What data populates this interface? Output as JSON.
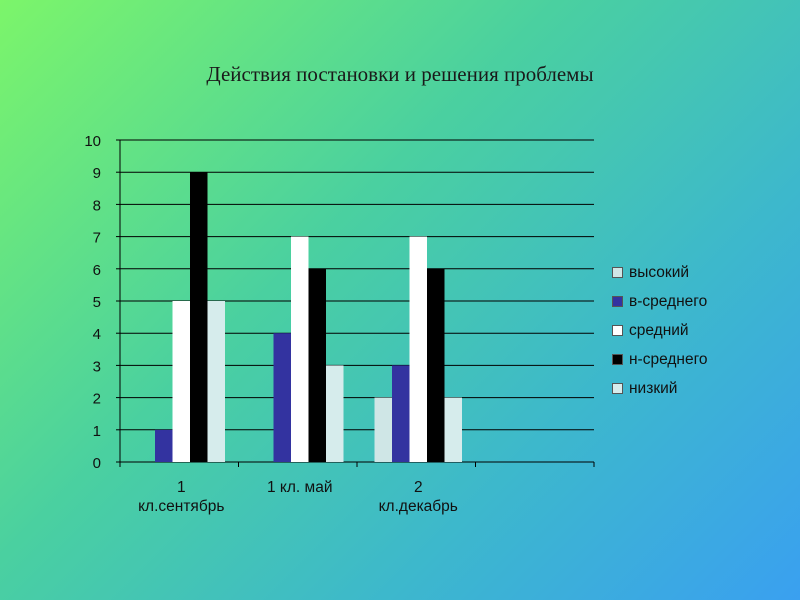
{
  "slide": {
    "title": "Действия постановки и решения проблемы"
  },
  "chart_data": {
    "type": "bar",
    "title": "Действия постановки и решения проблемы",
    "categories": [
      [
        "1",
        "кл.сентябрь"
      ],
      [
        "1 кл. май"
      ],
      [
        "2",
        "кл.декабрь"
      ]
    ],
    "series": [
      {
        "name": "высокий",
        "color": "#cfe6e6",
        "values": [
          0,
          0,
          2
        ]
      },
      {
        "name": "в-среднего",
        "color": "#3333a0",
        "values": [
          1,
          4,
          3
        ]
      },
      {
        "name": "средний",
        "color": "#ffffff",
        "values": [
          5,
          7,
          7
        ]
      },
      {
        "name": "н-среднего",
        "color": "#000000",
        "values": [
          9,
          6,
          6
        ]
      },
      {
        "name": "низкий",
        "color": "#d6ecec",
        "values": [
          5,
          3,
          2
        ]
      }
    ],
    "ylim": [
      0,
      10
    ],
    "yticks": [
      "0",
      "1",
      "2",
      "3",
      "4",
      "5",
      "6",
      "7",
      "8",
      "9",
      "10"
    ],
    "grid": true,
    "legend_position": "right"
  }
}
